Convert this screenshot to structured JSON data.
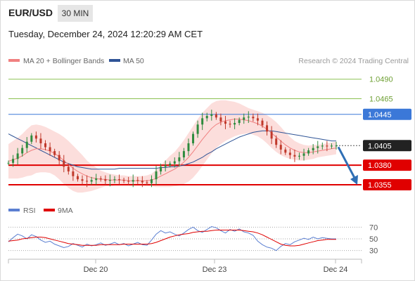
{
  "header": {
    "pair": "EUR/USD",
    "timeframe": "30 MIN",
    "datetime": "Tuesday, December 24, 2024 12:20:29 AM CET"
  },
  "chart_data": {
    "type": "line",
    "credit": "Research © 2024 Trading Central",
    "legend": [
      {
        "name": "MA 20 + Bollinger Bands",
        "color": "#f08080"
      },
      {
        "name": "MA 50",
        "color": "#2f5496"
      }
    ],
    "ylim": [
      1.0337,
      1.0505
    ],
    "x_ticks": [
      "Dec 20",
      "Dec 23",
      "Dec 24"
    ],
    "levels": [
      {
        "value": 1.049,
        "label": "1.0490",
        "color": "#8cc152",
        "style": "green-line"
      },
      {
        "value": 1.0465,
        "label": "1.0465",
        "color": "#8cc152",
        "style": "green-line"
      },
      {
        "value": 1.0445,
        "label": "1.0445",
        "color": "#3b78d8",
        "style": "resistance"
      },
      {
        "value": 1.0405,
        "label": "1.0405",
        "color": "#222222",
        "style": "current"
      },
      {
        "value": 1.038,
        "label": "1.0380",
        "color": "#e00000",
        "style": "support"
      },
      {
        "value": 1.0355,
        "label": "1.0355",
        "color": "#e00000",
        "style": "support"
      }
    ],
    "price_series": [
      1.0383,
      1.0388,
      1.0395,
      1.0402,
      1.041,
      1.0418,
      1.0414,
      1.0408,
      1.0403,
      1.0398,
      1.0393,
      1.0386,
      1.0378,
      1.0372,
      1.0366,
      1.0362,
      1.036,
      1.0359,
      1.0361,
      1.0363,
      1.0362,
      1.036,
      1.0361,
      1.0362,
      1.0361,
      1.036,
      1.0359,
      1.0361,
      1.036,
      1.0358,
      1.0357,
      1.0362,
      1.0372,
      1.0378,
      1.038,
      1.0382,
      1.0385,
      1.039,
      1.0398,
      1.0408,
      1.042,
      1.0432,
      1.044,
      1.0443,
      1.0445,
      1.0441,
      1.0436,
      1.0433,
      1.0432,
      1.0434,
      1.0438,
      1.0441,
      1.0442,
      1.044,
      1.0437,
      1.0431,
      1.0423,
      1.0414,
      1.0406,
      1.04,
      1.0396,
      1.0393,
      1.0391,
      1.0392,
      1.0395,
      1.0399,
      1.0402,
      1.0404,
      1.0405,
      1.0404,
      1.0405,
      1.0405
    ],
    "ma20": [
      1.0385,
      1.0387,
      1.0389,
      1.0392,
      1.0396,
      1.0399,
      1.0401,
      1.0401,
      1.04,
      1.0398,
      1.0395,
      1.0391,
      1.0386,
      1.0381,
      1.0376,
      1.0372,
      1.0369,
      1.0366,
      1.0364,
      1.0363,
      1.0362,
      1.0362,
      1.0361,
      1.0361,
      1.0361,
      1.0361,
      1.036,
      1.036,
      1.036,
      1.036,
      1.036,
      1.0361,
      1.0363,
      1.0366,
      1.0369,
      1.0372,
      1.0375,
      1.0379,
      1.0384,
      1.039,
      1.0397,
      1.0405,
      1.0413,
      1.042,
      1.0427,
      1.0432,
      1.0435,
      1.0437,
      1.0438,
      1.0439,
      1.0439,
      1.0438,
      1.0437,
      1.0435,
      1.0433,
      1.043,
      1.0426,
      1.0421,
      1.0416,
      1.0411,
      1.0406,
      1.0402,
      1.0399,
      1.0397,
      1.0396,
      1.0396,
      1.0397,
      1.0398,
      1.0399,
      1.04,
      1.0401,
      1.0402
    ],
    "ma50": [
      1.042,
      1.0417,
      1.0414,
      1.0411,
      1.0408,
      1.0405,
      1.0402,
      1.0399,
      1.0396,
      1.0393,
      1.039,
      1.0387,
      1.0384,
      1.0382,
      1.038,
      1.0378,
      1.0377,
      1.0376,
      1.0375,
      1.0375,
      1.0375,
      1.0375,
      1.0375,
      1.0375,
      1.0376,
      1.0376,
      1.0376,
      1.0376,
      1.0376,
      1.0376,
      1.0376,
      1.0376,
      1.0376,
      1.0377,
      1.0377,
      1.0378,
      1.0378,
      1.0379,
      1.038,
      1.0382,
      1.0384,
      1.0387,
      1.039,
      1.0394,
      1.0397,
      1.0401,
      1.0404,
      1.0407,
      1.041,
      1.0413,
      1.0416,
      1.0418,
      1.042,
      1.0422,
      1.0423,
      1.0424,
      1.0424,
      1.0424,
      1.0423,
      1.0422,
      1.0421,
      1.042,
      1.0419,
      1.0418,
      1.0417,
      1.0416,
      1.0415,
      1.0414,
      1.0413,
      1.0412,
      1.0411,
      1.0411
    ],
    "bb_width": [
      0.0022,
      0.0024,
      0.0026,
      0.0028,
      0.003,
      0.0032,
      0.0031,
      0.003,
      0.0029,
      0.0028,
      0.0028,
      0.0029,
      0.003,
      0.003,
      0.0029,
      0.0027,
      0.0024,
      0.002,
      0.0017,
      0.0014,
      0.0011,
      0.0009,
      0.0008,
      0.0007,
      0.0006,
      0.0006,
      0.0006,
      0.0006,
      0.0006,
      0.0006,
      0.0007,
      0.0008,
      0.0011,
      0.0014,
      0.0017,
      0.002,
      0.0022,
      0.0025,
      0.0028,
      0.0031,
      0.0033,
      0.0034,
      0.0034,
      0.0033,
      0.0032,
      0.003,
      0.0028,
      0.0026,
      0.0024,
      0.0022,
      0.002,
      0.0018,
      0.0016,
      0.0016,
      0.0016,
      0.0017,
      0.0018,
      0.0019,
      0.0019,
      0.0018,
      0.0016,
      0.0014,
      0.0012,
      0.0011,
      0.001,
      0.0009,
      0.0009,
      0.0008,
      0.0008,
      0.0008,
      0.0008,
      0.0008
    ],
    "forecast": {
      "from": 1.0405,
      "to": 1.0355
    },
    "rsi": {
      "legend": [
        {
          "name": "RSI",
          "color": "#5b7fd1"
        },
        {
          "name": "9MA",
          "color": "#e00000"
        }
      ],
      "ylim": [
        20,
        80
      ],
      "ticks": [
        "70",
        "50",
        "30"
      ],
      "tick_values": [
        70,
        50,
        30
      ],
      "rsi": [
        45,
        52,
        58,
        55,
        50,
        57,
        54,
        48,
        44,
        46,
        41,
        38,
        35,
        37,
        42,
        39,
        36,
        41,
        38,
        40,
        43,
        39,
        41,
        44,
        40,
        42,
        38,
        41,
        44,
        40,
        39,
        48,
        58,
        64,
        60,
        62,
        58,
        55,
        60,
        66,
        70,
        64,
        61,
        66,
        71,
        69,
        64,
        60,
        66,
        63,
        67,
        62,
        60,
        56,
        46,
        40,
        36,
        34,
        30,
        37,
        42,
        40,
        45,
        48,
        51,
        49,
        53,
        50,
        52,
        51,
        50,
        50
      ],
      "ma9": [
        46,
        47,
        48,
        50,
        51,
        52,
        53,
        53,
        52,
        50,
        48,
        46,
        44,
        42,
        41,
        40,
        39,
        39,
        39,
        39,
        40,
        40,
        40,
        40,
        40,
        41,
        41,
        41,
        41,
        41,
        41,
        42,
        44,
        47,
        50,
        53,
        55,
        57,
        58,
        59,
        61,
        62,
        63,
        63,
        64,
        65,
        65,
        65,
        65,
        65,
        65,
        64,
        63,
        62,
        60,
        57,
        53,
        49,
        45,
        41,
        39,
        38,
        38,
        39,
        41,
        43,
        45,
        47,
        48,
        49,
        49,
        49
      ]
    }
  }
}
